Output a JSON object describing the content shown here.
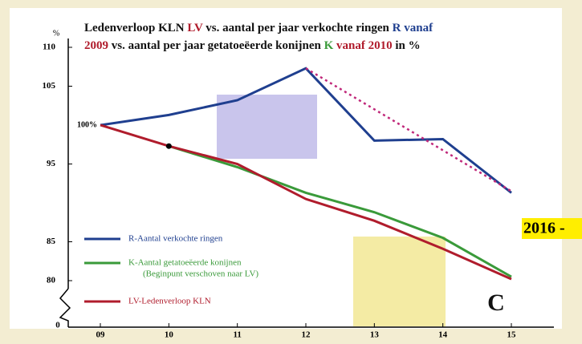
{
  "chart_data": {
    "type": "line",
    "title": [
      [
        {
          "text": "Ledenverloop KLN ",
          "color": "#111111"
        },
        {
          "text": "LV",
          "color": "#b01c2c"
        },
        {
          "text": " vs. aantal per jaar verkochte ringen ",
          "color": "#111111"
        },
        {
          "text": "R vanaf",
          "color": "#1f3f8f"
        }
      ],
      [
        {
          "text": "2009",
          "color": "#b01c2c"
        },
        {
          "text": " vs. aantal per jaar getatoeëerde konijnen ",
          "color": "#111111"
        },
        {
          "text": "K",
          "color": "#3a9a3a"
        },
        {
          "text": " vanaf 2010",
          "color": "#b01c2c"
        },
        {
          "text": " in %",
          "color": "#111111"
        }
      ]
    ],
    "y_unit": "%",
    "categories": [
      "09",
      "10",
      "11",
      "12",
      "13",
      "14",
      "15"
    ],
    "series": [
      {
        "name": "R-Aantal verkochte ringen",
        "color": "#1f3f8f",
        "values": [
          100,
          101.3,
          103.2,
          107.3,
          98,
          98.2,
          91.3
        ]
      },
      {
        "name": "K-Aantal getatoeëerde konijnen",
        "legend_note": "(Beginpunt verschoven naar LV)",
        "color": "#3a9a3a",
        "values": [
          null,
          97.3,
          94.6,
          91.3,
          88.8,
          85.5,
          80.5
        ]
      },
      {
        "name": "LV-Ledenverloop KLN",
        "color": "#b01c2c",
        "values": [
          100,
          97.3,
          95,
          90.5,
          87.7,
          84.1,
          80.2
        ]
      },
      {
        "color": "#c0287a",
        "dashed": true,
        "values": [
          null,
          null,
          null,
          107.3,
          null,
          null,
          91.5
        ]
      }
    ],
    "start_label": {
      "text": "100%",
      "value": 100
    },
    "ylim": [
      80,
      110
    ],
    "yticks": [
      80,
      85,
      95,
      105,
      110
    ],
    "axis_break_label": "0",
    "corner_label": "C",
    "side_label": "2016 -"
  }
}
